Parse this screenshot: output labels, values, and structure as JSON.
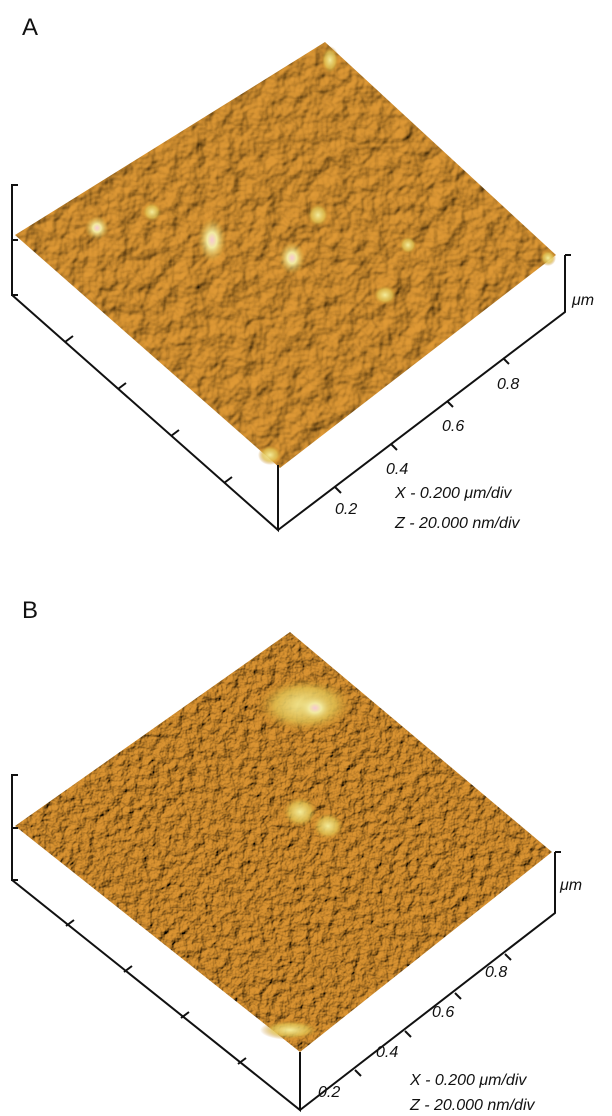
{
  "panels": [
    {
      "label": "A",
      "axis_unit": "μm",
      "axis_ticks": [
        "0.2",
        "0.4",
        "0.6",
        "0.8"
      ],
      "scale": [
        "X - 0.200  μm/div",
        "Z - 20.000  nm/div"
      ]
    },
    {
      "label": "B",
      "axis_unit": "μm",
      "axis_ticks": [
        "0.2",
        "0.4",
        "0.6",
        "0.8"
      ],
      "scale": [
        "X - 0.200  μm/div",
        "Z - 20.000  nm/div"
      ]
    }
  ]
}
